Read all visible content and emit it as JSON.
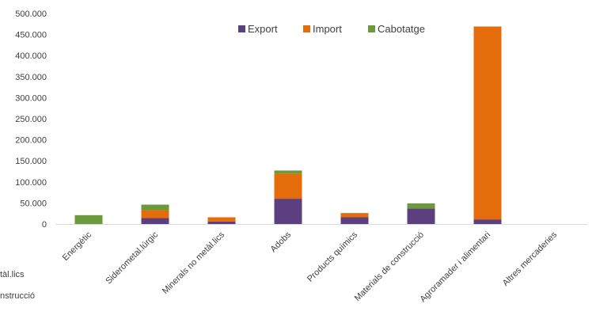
{
  "chart_data": {
    "type": "bar",
    "stacked": true,
    "categories": [
      "Energètic",
      "Siderometal.lúrgic",
      "Minerals no metàl.lics",
      "Adobs",
      "Products químics",
      "Materials de construcció",
      "Agroramader i alimentari",
      "Altres mercaderies"
    ],
    "series": [
      {
        "name": "Export",
        "color": "#5b3f7f",
        "values": [
          0,
          14000,
          6000,
          60000,
          16000,
          37000,
          11000,
          0
        ]
      },
      {
        "name": "Import",
        "color": "#e46c0a",
        "values": [
          0,
          19000,
          10000,
          60000,
          10000,
          0,
          458000,
          0
        ]
      },
      {
        "name": "Cabotatge",
        "color": "#6a9a3a",
        "values": [
          21000,
          13000,
          0,
          7000,
          0,
          12000,
          0,
          0
        ]
      }
    ],
    "ylim": [
      0,
      500000
    ],
    "yticks": [
      "0",
      "50.000",
      "100.000",
      "150.000",
      "200.000",
      "250.000",
      "300.000",
      "350.000",
      "400.000",
      "450.000",
      "500.000"
    ],
    "ytick_values": [
      0,
      50000,
      100000,
      150000,
      200000,
      250000,
      300000,
      350000,
      400000,
      450000,
      500000
    ],
    "gridlines": false,
    "legend_position": "top"
  },
  "clipped_labels": [
    "tàl.lics",
    "nstrucció"
  ]
}
